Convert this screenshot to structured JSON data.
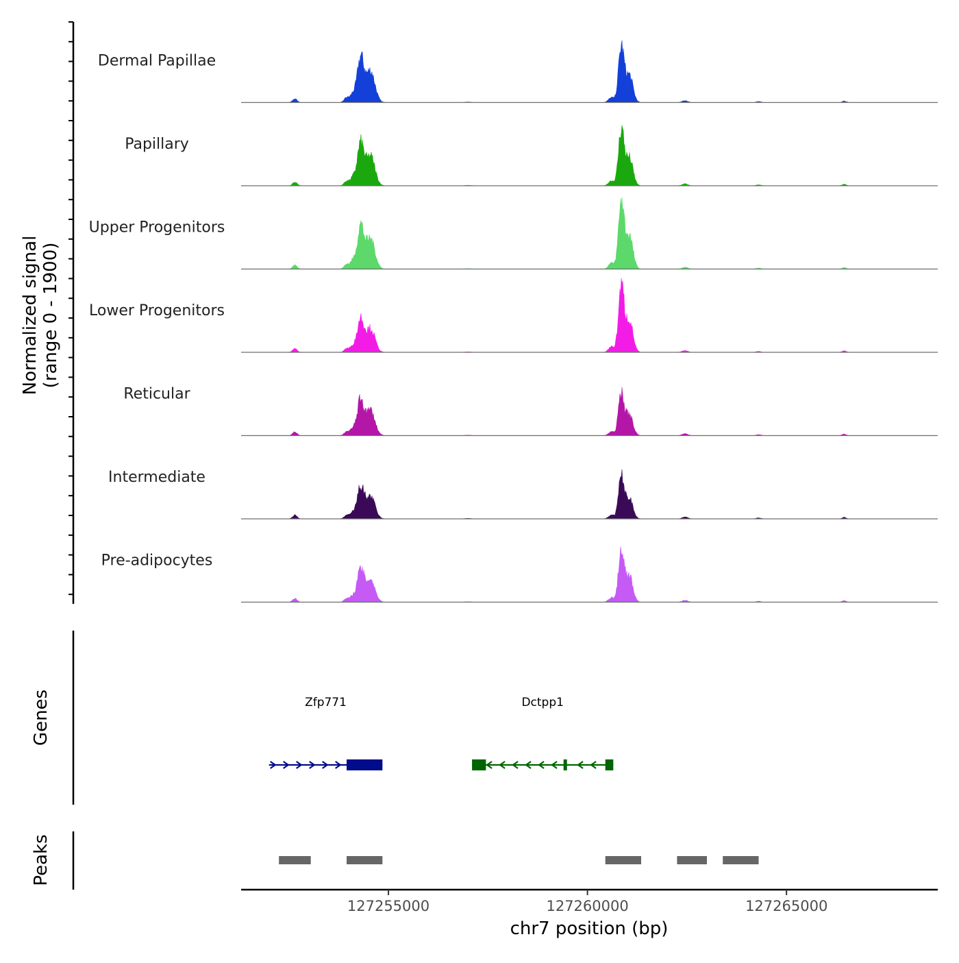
{
  "chart_data": {
    "type": "area",
    "title": "",
    "ylabel_line1": "Normalized signal",
    "ylabel_line2": "(range 0 - 1900)",
    "y_range": [
      0,
      1900
    ],
    "xlabel": "chr7 position (bp)",
    "xlim": [
      127251300,
      127268800
    ],
    "x_ticks": [
      127255000,
      127260000,
      127265000
    ],
    "x_tick_labels": [
      "127255000",
      "127260000",
      "127265000"
    ],
    "tracks": [
      {
        "name": "Dermal Papillae",
        "color": "#1240d8",
        "peak_scale": 0.82,
        "left_scale": 0.85
      },
      {
        "name": "Papillary",
        "color": "#1aa80e",
        "peak_scale": 0.84,
        "left_scale": 0.8
      },
      {
        "name": "Upper Progenitors",
        "color": "#5cd96a",
        "peak_scale": 1.0,
        "left_scale": 0.82
      },
      {
        "name": "Lower Progenitors",
        "color": "#f21ce6",
        "peak_scale": 0.97,
        "left_scale": 0.64
      },
      {
        "name": "Reticular",
        "color": "#b416a8",
        "peak_scale": 0.63,
        "left_scale": 0.68
      },
      {
        "name": "Intermediate",
        "color": "#3a0a58",
        "peak_scale": 0.62,
        "left_scale": 0.61
      },
      {
        "name": "Pre-adipocytes",
        "color": "#c55af5",
        "peak_scale": 0.78,
        "left_scale": 0.62
      }
    ],
    "genes_label": "Genes",
    "genes": [
      {
        "name": "Zfp771",
        "strand": "+",
        "start": 127252000,
        "end": 127254850,
        "color": "#000c8c",
        "exons": [
          [
            127253950,
            127254850
          ]
        ]
      },
      {
        "name": "Dctpp1",
        "strand": "-",
        "start": 127257100,
        "end": 127260650,
        "color": "#006400",
        "exons": [
          [
            127257100,
            127257450
          ],
          [
            127259400,
            127259480
          ],
          [
            127260450,
            127260650
          ]
        ]
      }
    ],
    "peaks_label": "Peaks",
    "peaks": [
      [
        127252250,
        127253050
      ],
      [
        127253950,
        127254850
      ],
      [
        127260450,
        127261350
      ],
      [
        127262250,
        127263000
      ],
      [
        127263400,
        127264300
      ]
    ]
  }
}
